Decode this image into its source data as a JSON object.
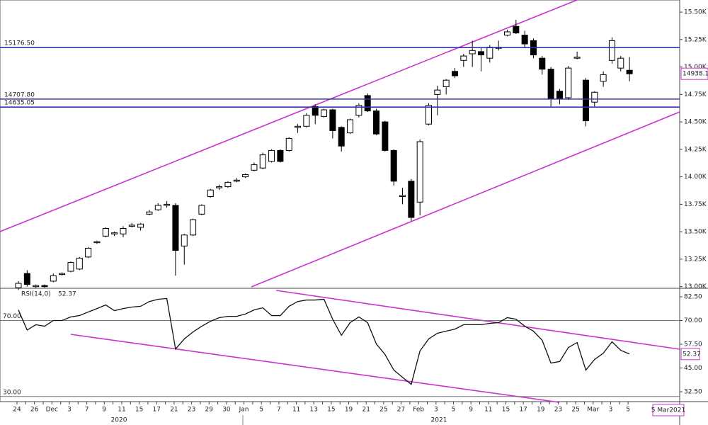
{
  "chart_data": [
    {
      "type": "candlestick",
      "categories": [
        "24",
        null,
        "26",
        null,
        "Dec",
        null,
        "3",
        null,
        "7",
        null,
        "9",
        null,
        "11",
        null,
        "15",
        null,
        "17",
        null,
        "21",
        null,
        "23",
        null,
        "29",
        null,
        "30",
        null,
        "Jan",
        null,
        "5",
        null,
        "7",
        null,
        "11",
        null,
        "13",
        null,
        "15",
        null,
        "19",
        null,
        "21",
        null,
        "25",
        null,
        "27",
        null,
        "Feb",
        null,
        "3",
        null,
        "5",
        null,
        "9",
        null,
        "11",
        null,
        "15",
        null,
        "17",
        null,
        "19",
        null,
        "23",
        null,
        "25",
        null,
        "Mar",
        null,
        "3",
        null,
        "5"
      ],
      "years": [
        "2020",
        "2021"
      ],
      "date_label": "5 Mar2021",
      "ohlc": [
        [
          12990,
          13050,
          12970,
          13030
        ],
        [
          13120,
          13150,
          13000,
          13020
        ],
        [
          13000,
          13020,
          12990,
          13010
        ],
        [
          13010,
          13020,
          12990,
          13000
        ],
        [
          13050,
          13120,
          13040,
          13100
        ],
        [
          13110,
          13130,
          13100,
          13120
        ],
        [
          13140,
          13230,
          13130,
          13220
        ],
        [
          13160,
          13270,
          13150,
          13260
        ],
        [
          13270,
          13360,
          13260,
          13350
        ],
        [
          13400,
          13420,
          13390,
          13410
        ],
        [
          13460,
          13540,
          13450,
          13530
        ],
        [
          13480,
          13500,
          13460,
          13490
        ],
        [
          13480,
          13550,
          13450,
          13530
        ],
        [
          13550,
          13580,
          13540,
          13560
        ],
        [
          13540,
          13580,
          13510,
          13570
        ],
        [
          13660,
          13700,
          13650,
          13680
        ],
        [
          13700,
          13760,
          13690,
          13740
        ],
        [
          13740,
          13780,
          13720,
          13750
        ],
        [
          13740,
          13760,
          13100,
          13330
        ],
        [
          13370,
          13480,
          13200,
          13470
        ],
        [
          13470,
          13620,
          13460,
          13610
        ],
        [
          13660,
          13750,
          13650,
          13740
        ],
        [
          13820,
          13890,
          13810,
          13880
        ],
        [
          13900,
          13930,
          13880,
          13910
        ],
        [
          13910,
          13960,
          13900,
          13950
        ],
        [
          13960,
          13990,
          13950,
          13970
        ],
        [
          14000,
          14030,
          13990,
          14020
        ],
        [
          14060,
          14130,
          14050,
          14110
        ],
        [
          14080,
          14220,
          14070,
          14200
        ],
        [
          14140,
          14250,
          14130,
          14240
        ],
        [
          14240,
          14250,
          14130,
          14140
        ],
        [
          14240,
          14360,
          14230,
          14350
        ],
        [
          14450,
          14480,
          14400,
          14460
        ],
        [
          14460,
          14580,
          14450,
          14560
        ],
        [
          14640,
          14660,
          14480,
          14560
        ],
        [
          14550,
          14620,
          14540,
          14610
        ],
        [
          14610,
          14620,
          14350,
          14420
        ],
        [
          14450,
          14460,
          14230,
          14280
        ],
        [
          14400,
          14530,
          14390,
          14520
        ],
        [
          14560,
          14670,
          14540,
          14650
        ],
        [
          14740,
          14760,
          14590,
          14600
        ],
        [
          14600,
          14620,
          14380,
          14390
        ],
        [
          14500,
          14510,
          14230,
          14240
        ],
        [
          14240,
          14250,
          13920,
          13960
        ],
        [
          13830,
          13900,
          13750,
          13830
        ],
        [
          13960,
          13980,
          13600,
          13630
        ],
        [
          13770,
          14340,
          13650,
          14320
        ],
        [
          14480,
          14670,
          14470,
          14650
        ],
        [
          14750,
          14830,
          14560,
          14790
        ],
        [
          14820,
          14890,
          14750,
          14880
        ],
        [
          14960,
          14990,
          14900,
          14920
        ],
        [
          15060,
          15120,
          15000,
          15100
        ],
        [
          15120,
          15240,
          15000,
          15150
        ],
        [
          15140,
          15180,
          14960,
          15110
        ],
        [
          15080,
          15200,
          15040,
          15180
        ],
        [
          15170,
          15240,
          15150,
          15180
        ],
        [
          15290,
          15340,
          15280,
          15320
        ],
        [
          15370,
          15430,
          15300,
          15310
        ],
        [
          15290,
          15330,
          15180,
          15210
        ],
        [
          15240,
          15260,
          15080,
          15110
        ],
        [
          15080,
          15100,
          14930,
          14980
        ],
        [
          14980,
          15000,
          14640,
          14710
        ],
        [
          14780,
          14800,
          14660,
          14710
        ],
        [
          14720,
          15010,
          14700,
          14990
        ],
        [
          15080,
          15140,
          15070,
          15090
        ],
        [
          14880,
          14900,
          14460,
          14510
        ],
        [
          14680,
          14780,
          14640,
          14770
        ],
        [
          14870,
          14960,
          14820,
          14930
        ],
        [
          15060,
          15270,
          15030,
          15240
        ],
        [
          14990,
          15100,
          14960,
          15080
        ],
        [
          14970,
          15090,
          14870,
          14938.1
        ]
      ],
      "levels": [
        {
          "value": 15176.5,
          "label": "15176.50"
        },
        {
          "value": 14707.8,
          "label": "14707.80"
        },
        {
          "value": 14635.05,
          "label": "14635.05"
        }
      ],
      "ylim": [
        12985,
        15610
      ],
      "yticks": [
        {
          "value": 13000,
          "label": "13.00K"
        },
        {
          "value": 13250,
          "label": "13.25K"
        },
        {
          "value": 13500,
          "label": "13.50K"
        },
        {
          "value": 13750,
          "label": "13.75K"
        },
        {
          "value": 14000,
          "label": "14.00K"
        },
        {
          "value": 14250,
          "label": "14.25K"
        },
        {
          "value": 14500,
          "label": "14.50K"
        },
        {
          "value": 14750,
          "label": "14.75K"
        },
        {
          "value": 15000,
          "label": "15.00K"
        },
        {
          "value": 15250,
          "label": "15.25K"
        },
        {
          "value": 15500,
          "label": "15.50K"
        }
      ]
    },
    {
      "type": "line",
      "title": "RSI(14,0)",
      "values": [
        75.6,
        65,
        67.8,
        67,
        70,
        70,
        71.9,
        72.6,
        74.5,
        76.3,
        78.2,
        75.2,
        76.3,
        77.1,
        77.5,
        80,
        81.2,
        81.6,
        55,
        60.3,
        64,
        67,
        69.6,
        71.5,
        72.2,
        72.2,
        73.4,
        75.6,
        76.7,
        72.6,
        72.6,
        77.5,
        80,
        80.8,
        80.8,
        81.2,
        70.7,
        62.2,
        68.9,
        71.9,
        68.9,
        57.7,
        52.1,
        43.9,
        40.1,
        36.4,
        54,
        60.3,
        63.3,
        64.4,
        65.5,
        67.8,
        67.8,
        67.8,
        68.5,
        68.9,
        71.5,
        70.7,
        67,
        64.4,
        59.6,
        47.6,
        48.4,
        55.8,
        58.4,
        43.9,
        49.5,
        52.8,
        58.8,
        54.3,
        52.37
      ],
      "levels": [
        {
          "value": 70,
          "label": "70.00"
        },
        {
          "value": 30,
          "label": "30.00"
        }
      ],
      "ylim": [
        27.3,
        86.6
      ],
      "yticks": [
        {
          "value": 32.5,
          "label": "32.50"
        },
        {
          "value": 45,
          "label": "45.00"
        },
        {
          "value": 57.5,
          "label": "57.50"
        },
        {
          "value": 70,
          "label": "70.00"
        },
        {
          "value": 82.5,
          "label": "82.50"
        }
      ]
    }
  ]
}
